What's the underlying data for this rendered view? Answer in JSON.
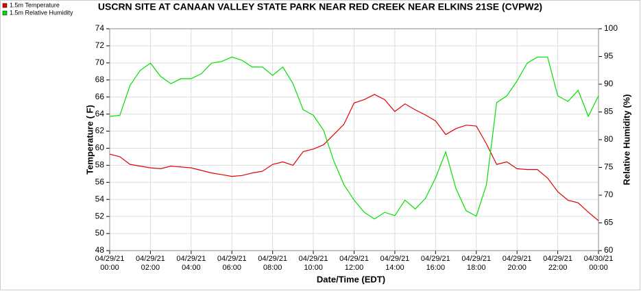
{
  "chart_data": {
    "type": "line",
    "title": "USCRN SITE AT CANAAN VALLEY STATE PARK NEAR RED CREEK NEAR ELKINS 21SE (CVPW2)",
    "xlabel": "Date/Time (EDT)",
    "ylabel": "Temperature ( F)",
    "y2label": "Relative Humidity (%)",
    "x": [
      0,
      0.5,
      1,
      1.5,
      2,
      2.5,
      3,
      3.5,
      4,
      4.5,
      5,
      5.5,
      6,
      6.5,
      7,
      7.5,
      8,
      8.5,
      9,
      9.5,
      10,
      10.5,
      11,
      11.5,
      12,
      12.5,
      13,
      13.5,
      14,
      14.5,
      15,
      15.5,
      16,
      16.5,
      17,
      17.5,
      18,
      18.5,
      19,
      19.5,
      20,
      20.5,
      21,
      21.5,
      22,
      22.5,
      23,
      23.5,
      24
    ],
    "series": [
      {
        "name": "1.5m Temperature",
        "color": "#e00000",
        "values": [
          59.3,
          59.0,
          58.1,
          57.9,
          57.7,
          57.6,
          57.9,
          57.8,
          57.7,
          57.4,
          57.1,
          56.9,
          56.7,
          56.8,
          57.1,
          57.3,
          58.1,
          58.4,
          58.0,
          59.6,
          59.9,
          60.4,
          61.6,
          62.8,
          65.3,
          65.7,
          66.3,
          65.7,
          64.3,
          65.2,
          64.5,
          63.9,
          63.2,
          61.6,
          62.3,
          62.7,
          62.6,
          60.5,
          58.1,
          58.4,
          57.6,
          57.5,
          57.5,
          56.5,
          54.9,
          53.9,
          53.6,
          52.5,
          51.5
        ]
      },
      {
        "name": "1.5m Relative Humidity",
        "color": "#00e000",
        "axis": "y2",
        "values": [
          84.2,
          84.4,
          89.8,
          92.5,
          93.8,
          91.4,
          90.1,
          91.0,
          91.0,
          91.9,
          93.8,
          94.1,
          94.9,
          94.3,
          93.1,
          93.1,
          91.6,
          93.1,
          90.1,
          85.4,
          84.4,
          81.7,
          76.2,
          71.9,
          69.1,
          66.9,
          65.7,
          66.9,
          66.3,
          69.1,
          67.5,
          69.4,
          73.1,
          77.8,
          71.2,
          67.2,
          66.2,
          71.9,
          86.7,
          87.9,
          90.6,
          93.8,
          94.9,
          94.9,
          87.9,
          86.9,
          88.9,
          84.2,
          87.9
        ]
      }
    ],
    "xlim": [
      0,
      24
    ],
    "xticks": [
      {
        "value": 0,
        "label": "04/29/21\n00:00"
      },
      {
        "value": 2,
        "label": "04/29/21\n02:00"
      },
      {
        "value": 4,
        "label": "04/29/21\n04:00"
      },
      {
        "value": 6,
        "label": "04/29/21\n06:00"
      },
      {
        "value": 8,
        "label": "04/29/21\n08:00"
      },
      {
        "value": 10,
        "label": "04/29/21\n10:00"
      },
      {
        "value": 12,
        "label": "04/29/21\n12:00"
      },
      {
        "value": 14,
        "label": "04/29/21\n14:00"
      },
      {
        "value": 16,
        "label": "04/29/21\n16:00"
      },
      {
        "value": 18,
        "label": "04/29/21\n18:00"
      },
      {
        "value": 20,
        "label": "04/29/21\n20:00"
      },
      {
        "value": 22,
        "label": "04/29/21\n22:00"
      },
      {
        "value": 24,
        "label": "04/30/21\n00:00"
      }
    ],
    "ylim": [
      48,
      74
    ],
    "yticks": [
      48,
      50,
      52,
      54,
      56,
      58,
      60,
      62,
      64,
      66,
      68,
      70,
      72,
      74
    ],
    "y2lim": [
      60,
      100
    ],
    "y2ticks": [
      60,
      65,
      70,
      75,
      80,
      85,
      90,
      95,
      100
    ],
    "grid": true,
    "legend": "top-left"
  }
}
